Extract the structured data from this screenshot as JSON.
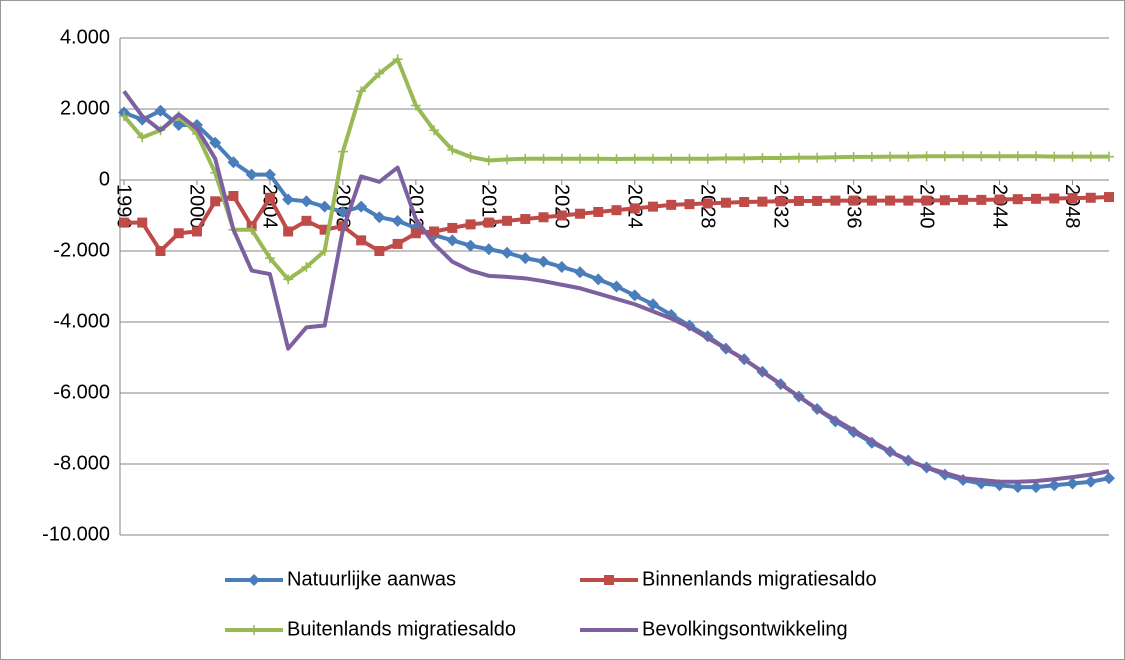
{
  "chart_data": {
    "type": "line",
    "x": [
      1996,
      1997,
      1998,
      1999,
      2000,
      2001,
      2002,
      2003,
      2004,
      2005,
      2006,
      2007,
      2008,
      2009,
      2010,
      2011,
      2012,
      2013,
      2014,
      2015,
      2016,
      2017,
      2018,
      2019,
      2020,
      2021,
      2022,
      2023,
      2024,
      2025,
      2026,
      2027,
      2028,
      2029,
      2030,
      2031,
      2032,
      2033,
      2034,
      2035,
      2036,
      2037,
      2038,
      2039,
      2040,
      2041,
      2042,
      2043,
      2044,
      2045,
      2046,
      2047,
      2048,
      2049,
      2050
    ],
    "series": [
      {
        "name": "Natuurlijke aanwas",
        "color": "#4a7ebb",
        "marker": "diamond",
        "values": [
          1900,
          1700,
          1950,
          1550,
          1550,
          1050,
          500,
          150,
          150,
          -550,
          -600,
          -750,
          -900,
          -750,
          -1050,
          -1150,
          -1350,
          -1550,
          -1700,
          -1850,
          -1950,
          -2050,
          -2200,
          -2300,
          -2450,
          -2600,
          -2800,
          -3000,
          -3250,
          -3500,
          -3800,
          -4100,
          -4400,
          -4750,
          -5050,
          -5400,
          -5750,
          -6100,
          -6450,
          -6800,
          -7100,
          -7400,
          -7650,
          -7900,
          -8100,
          -8300,
          -8450,
          -8550,
          -8600,
          -8650,
          -8650,
          -8600,
          -8550,
          -8500,
          -8400
        ]
      },
      {
        "name": "Binnenlands migratiesaldo",
        "color": "#be4b48",
        "marker": "square",
        "values": [
          -1200,
          -1200,
          -2000,
          -1500,
          -1450,
          -600,
          -450,
          -1300,
          -500,
          -1450,
          -1150,
          -1400,
          -1300,
          -1700,
          -2000,
          -1800,
          -1500,
          -1450,
          -1350,
          -1250,
          -1200,
          -1150,
          -1100,
          -1050,
          -1000,
          -950,
          -900,
          -850,
          -800,
          -750,
          -700,
          -680,
          -660,
          -640,
          -620,
          -610,
          -600,
          -590,
          -590,
          -580,
          -580,
          -580,
          -580,
          -580,
          -580,
          -570,
          -560,
          -560,
          -550,
          -540,
          -530,
          -520,
          -510,
          -500,
          -480
        ]
      },
      {
        "name": "Buitenlands migratiesaldo",
        "color": "#98b954",
        "marker": "plus",
        "values": [
          1800,
          1200,
          1400,
          1800,
          1300,
          200,
          -1400,
          -1400,
          -2200,
          -2800,
          -2450,
          -2000,
          800,
          2500,
          3000,
          3400,
          2100,
          1400,
          850,
          650,
          550,
          580,
          600,
          600,
          600,
          600,
          600,
          590,
          600,
          600,
          600,
          600,
          600,
          610,
          610,
          620,
          620,
          630,
          630,
          640,
          650,
          650,
          660,
          660,
          670,
          670,
          670,
          670,
          670,
          670,
          670,
          660,
          660,
          660,
          660
        ]
      },
      {
        "name": "Bevolkingsontwikkeling",
        "color": "#7d60a0",
        "marker": "none",
        "values": [
          2500,
          1800,
          1400,
          1850,
          1450,
          600,
          -1400,
          -2550,
          -2650,
          -4750,
          -4150,
          -4100,
          -1400,
          100,
          -50,
          350,
          -1100,
          -1800,
          -2300,
          -2550,
          -2700,
          -2730,
          -2770,
          -2850,
          -2950,
          -3050,
          -3200,
          -3350,
          -3500,
          -3700,
          -3900,
          -4150,
          -4450,
          -4750,
          -5050,
          -5400,
          -5750,
          -6100,
          -6450,
          -6750,
          -7050,
          -7350,
          -7650,
          -7900,
          -8100,
          -8250,
          -8400,
          -8450,
          -8500,
          -8500,
          -8480,
          -8430,
          -8370,
          -8300,
          -8200
        ]
      }
    ],
    "xlim": [
      1996,
      2050
    ],
    "xticks": [
      1996,
      2000,
      2004,
      2008,
      2012,
      2016,
      2020,
      2024,
      2028,
      2032,
      2036,
      2040,
      2044,
      2048
    ],
    "ylim": [
      -10000,
      4000
    ],
    "yticks": [
      {
        "value": -10000,
        "label": "-10.000"
      },
      {
        "value": -8000,
        "label": "-8.000"
      },
      {
        "value": -6000,
        "label": "-6.000"
      },
      {
        "value": -4000,
        "label": "-4.000"
      },
      {
        "value": -2000,
        "label": "-2.000"
      },
      0,
      {
        "value": 2000,
        "label": "2.000"
      },
      {
        "value": 4000,
        "label": "4.000"
      }
    ],
    "grid": true,
    "legend": "bottom"
  }
}
